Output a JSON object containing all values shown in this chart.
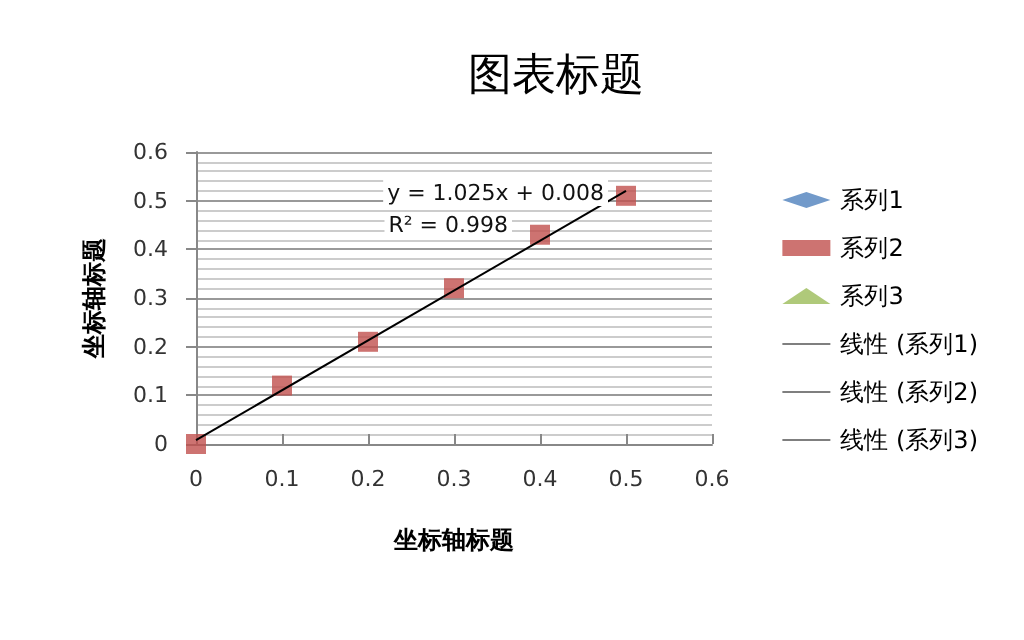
{
  "chart_data": {
    "type": "scatter",
    "title": "图表标题",
    "xlabel": "坐标轴标题",
    "ylabel": "坐标轴标题",
    "x": [
      0,
      0.1,
      0.2,
      0.3,
      0.4,
      0.5
    ],
    "series": [
      {
        "name": "系列1",
        "marker": "diamond",
        "color": "#4f81bd",
        "values": [
          null,
          null,
          null,
          null,
          null,
          null
        ]
      },
      {
        "name": "系列2",
        "marker": "square",
        "color": "#c0504d",
        "values": [
          0,
          0.12,
          0.21,
          0.32,
          0.43,
          0.51
        ]
      },
      {
        "name": "系列3",
        "marker": "triangle",
        "color": "#9bbb59",
        "values": [
          null,
          null,
          null,
          null,
          null,
          null
        ]
      },
      {
        "name": "线性 (系列1)",
        "type": "line",
        "line_style": "solid",
        "color": "#000000",
        "values": [
          null,
          null,
          null,
          null,
          null,
          null
        ]
      },
      {
        "name": "线性 (系列2)",
        "type": "line",
        "line_style": "solid",
        "color": "#000000",
        "x": [
          0,
          0.5
        ],
        "values": [
          0.008,
          0.52
        ]
      },
      {
        "name": "线性 (系列3)",
        "type": "line",
        "line_style": "solid",
        "color": "#000000",
        "values": [
          null,
          null,
          null,
          null,
          null,
          null
        ]
      }
    ],
    "annotations": [
      "y = 1.025x + 0.008",
      "R² = 0.998"
    ],
    "xlim": [
      0,
      0.6
    ],
    "xticks": [
      0,
      0.1,
      0.2,
      0.3,
      0.4,
      0.5,
      0.6
    ],
    "ylim": [
      0,
      0.6
    ],
    "yticks": [
      0,
      0.1,
      0.2,
      0.3,
      0.4,
      0.5,
      0.6
    ],
    "grid": "y",
    "legend": "right"
  }
}
